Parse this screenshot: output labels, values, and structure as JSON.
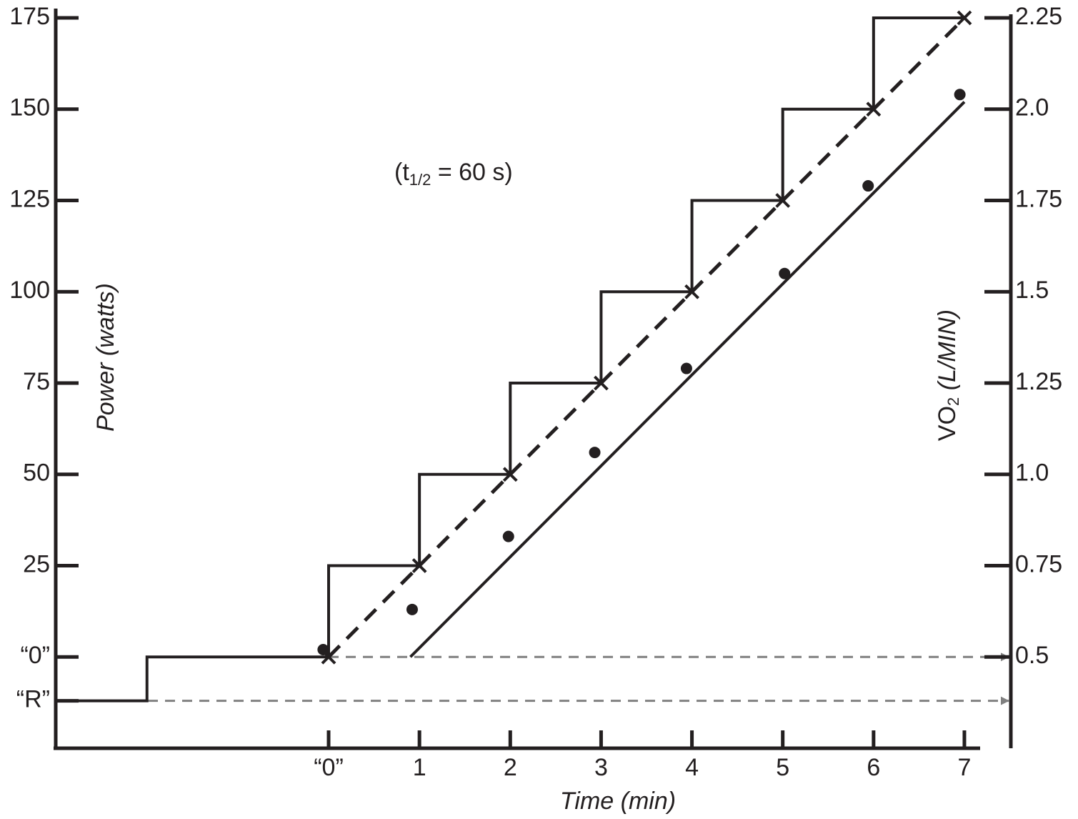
{
  "chart_data": {
    "type": "line",
    "xlabel": "Time (min)",
    "ylabel": "Power (watts)",
    "y2label": [
      "VO",
      "2",
      " (L/MIN)"
    ],
    "annotation": [
      "(t",
      "1/2",
      " = 60 s)"
    ],
    "xlim": [
      -3,
      7.2
    ],
    "xticks": [
      {
        "value": 0,
        "label": "“0”"
      },
      1,
      2,
      3,
      4,
      5,
      6,
      7
    ],
    "ylim": [
      -25,
      175
    ],
    "yticks": [
      {
        "value": -12,
        "label": "“R”"
      },
      {
        "value": 0,
        "label": "“0”"
      },
      25,
      50,
      75,
      100,
      125,
      150,
      175
    ],
    "y2lim": [
      0.25,
      2.25
    ],
    "y2ticks": [
      0.5,
      0.75,
      {
        "value": 1,
        "label": "1.0"
      },
      1.25,
      1.5,
      1.75,
      {
        "value": 2,
        "label": "2.0"
      },
      2.25
    ],
    "series": [
      {
        "color": "#231f20",
        "axis": "y",
        "line_style": "solid",
        "marker": null,
        "x": [
          -3,
          -2,
          -2,
          0,
          0,
          1,
          1,
          2,
          2,
          3,
          3,
          4,
          4,
          5,
          5,
          6,
          6,
          7
        ],
        "values": [
          -12,
          -12,
          0,
          0,
          25,
          25,
          50,
          50,
          75,
          75,
          100,
          100,
          125,
          125,
          150,
          150,
          175,
          175
        ]
      },
      {
        "color": "#231f20",
        "axis": "y2",
        "line_style": "dashed",
        "marker": "x",
        "x": [
          0,
          1,
          2,
          3,
          4,
          5,
          6,
          7
        ],
        "values": [
          0.5,
          0.75,
          1,
          1.25,
          1.5,
          1.75,
          2,
          2.25
        ]
      },
      {
        "color": "#231f20",
        "axis": "y2",
        "line_style": "solid",
        "marker": null,
        "x": [
          0.9,
          7
        ],
        "values": [
          0.5,
          2.02
        ]
      },
      {
        "color": "#231f20",
        "axis": "y2",
        "line_style": "none",
        "marker": "o",
        "x": [
          -0.06,
          0.92,
          1.98,
          2.93,
          3.94,
          5.02,
          5.94,
          6.95
        ],
        "values": [
          0.52,
          0.63,
          0.83,
          1.06,
          1.29,
          1.55,
          1.79,
          2.04
        ]
      }
    ]
  }
}
